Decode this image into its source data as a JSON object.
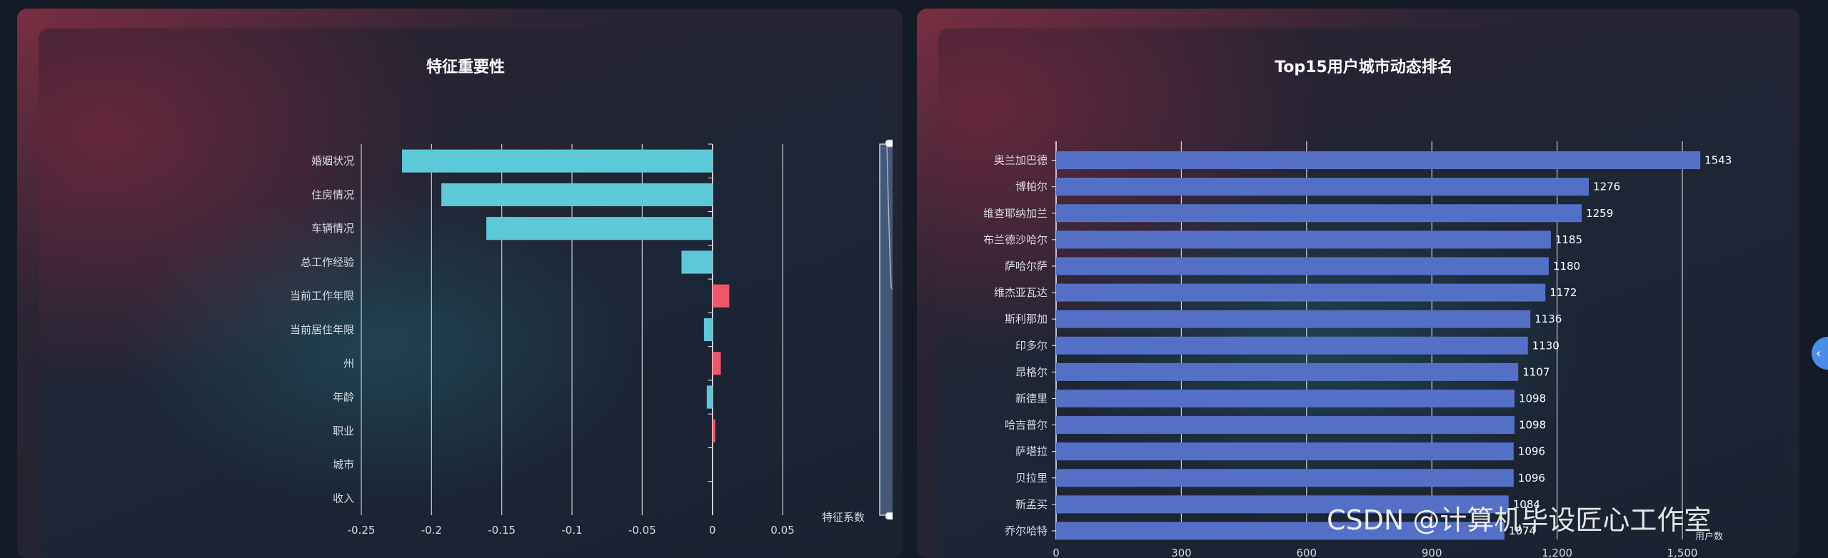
{
  "chart_data": [
    {
      "type": "bar",
      "orientation": "horizontal",
      "title": "特征重要性",
      "categories": [
        "婚姻状况",
        "住房情况",
        "车辆情况",
        "总工作经验",
        "当前工作年限",
        "当前居住年限",
        "州",
        "年龄",
        "职业",
        "城市",
        "收入"
      ],
      "values": [
        -0.221,
        -0.193,
        -0.161,
        -0.022,
        0.012,
        -0.006,
        0.006,
        -0.004,
        0.002,
        0.0,
        0.0
      ],
      "xlim": [
        -0.25,
        0.05
      ],
      "xticks": [
        "-0.25",
        "-0.2",
        "-0.15",
        "-0.1",
        "-0.05",
        "0",
        "0.05"
      ],
      "xlabel": "特征系数",
      "grid": true,
      "positive_color": "#f0566a",
      "negative_color": "#5ccad6",
      "data_zoom": "vertical slider on right"
    },
    {
      "type": "bar",
      "orientation": "horizontal",
      "title": "Top15用户城市动态排名",
      "categories": [
        "奥兰加巴德",
        "博帕尔",
        "维查耶纳加兰",
        "布兰德沙哈尔",
        "萨哈尔萨",
        "维杰亚瓦达",
        "斯利那加",
        "印多尔",
        "昂格尔",
        "新德里",
        "哈吉普尔",
        "萨塔拉",
        "贝拉里",
        "新孟买",
        "乔尔哈特"
      ],
      "values": [
        1543,
        1276,
        1259,
        1185,
        1180,
        1172,
        1136,
        1130,
        1107,
        1098,
        1098,
        1096,
        1096,
        1084,
        1074
      ],
      "labels": [
        "1543",
        "1276",
        "1259",
        "1185",
        "1180",
        "1172",
        "1136",
        "1130",
        "1107",
        "1098",
        "1098",
        "1096",
        "1096",
        "1084",
        "1074"
      ],
      "xlim": [
        0,
        1500
      ],
      "xticks": [
        "0",
        "300",
        "600",
        "900",
        "1,200",
        "1,500"
      ],
      "xlabel": "用户数",
      "grid": true,
      "bar_color": "#5470c6"
    }
  ],
  "watermark": "CSDN @计算机毕设匠心工作室",
  "side_handle_icon": "chevron-left-icon",
  "side_handle_glyph": "‹"
}
